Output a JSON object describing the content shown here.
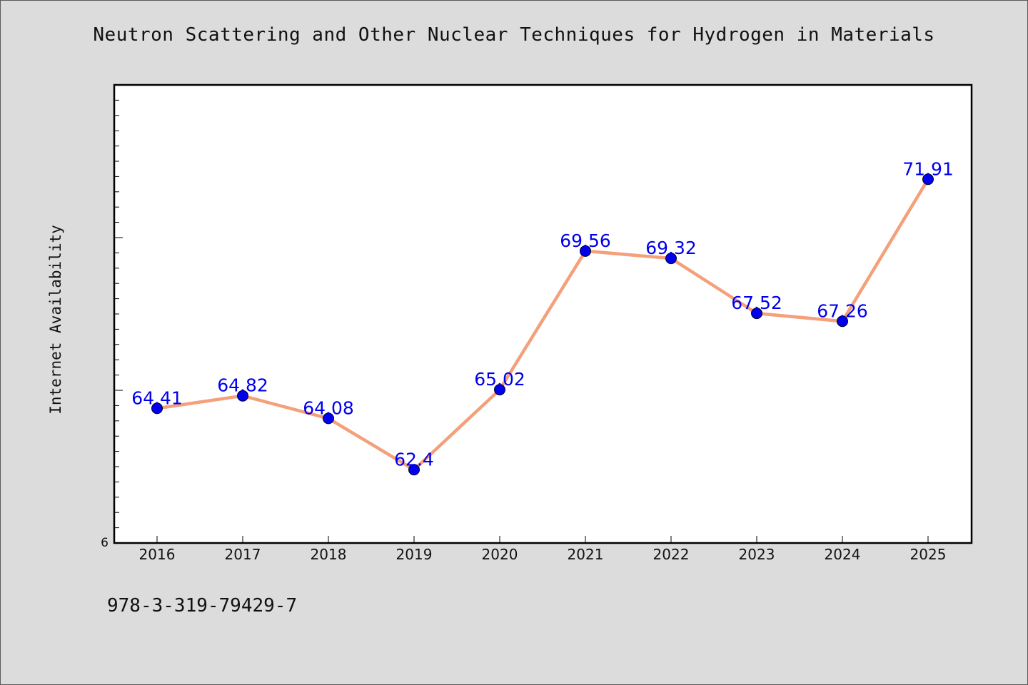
{
  "chart_data": {
    "type": "line",
    "title": "Neutron Scattering and Other Nuclear Techniques for Hydrogen in Materials",
    "xlabel": "",
    "ylabel": "Internet Availability",
    "categories": [
      "2016",
      "2017",
      "2018",
      "2019",
      "2020",
      "2021",
      "2022",
      "2023",
      "2024",
      "2025"
    ],
    "series": [
      {
        "values": [
          64.41,
          64.82,
          64.08,
          62.4,
          65.02,
          69.56,
          69.32,
          67.52,
          67.26,
          71.91
        ],
        "labels": [
          "64.41",
          "64.82",
          "64.08",
          "62.4",
          "65.02",
          "69.56",
          "69.32",
          "67.52",
          "67.26",
          "71.91"
        ]
      }
    ],
    "ylim": [
      60,
      75
    ],
    "y_tick_labels": [
      "6"
    ],
    "grid": false,
    "legend": "none",
    "colors": {
      "line": "#f4a07a",
      "marker": "#0000ee",
      "data_label": "#0000ee",
      "plot_background": "#ffffff",
      "page_background": "#dcdcdc"
    }
  },
  "footer": {
    "isbn": "978-3-319-79429-7"
  }
}
